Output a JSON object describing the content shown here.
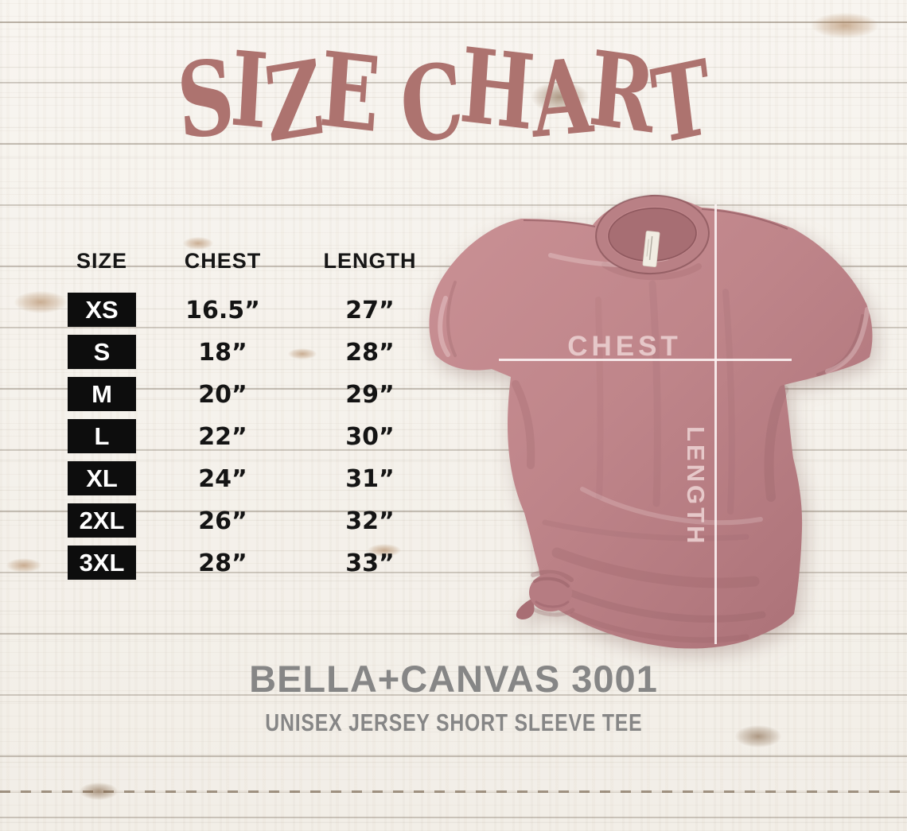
{
  "title": "SIZE CHART",
  "colors": {
    "title": "#ad736f",
    "shirt": "#c0868b",
    "measure": "#e6c8c9",
    "gray": "#868686",
    "badge": "#0d0d0d",
    "ink": "#161616"
  },
  "table": {
    "headers": {
      "size": "SIZE",
      "chest": "CHEST",
      "length": "LENGTH"
    },
    "rows": [
      {
        "size": "XS",
        "chest": "16.5”",
        "length": "27”"
      },
      {
        "size": "S",
        "chest": "18”",
        "length": "28”"
      },
      {
        "size": "M",
        "chest": "20”",
        "length": "29”"
      },
      {
        "size": "L",
        "chest": "22”",
        "length": "30”"
      },
      {
        "size": "XL",
        "chest": "24”",
        "length": "31”"
      },
      {
        "size": "2XL",
        "chest": "26”",
        "length": "32”"
      },
      {
        "size": "3XL",
        "chest": "28”",
        "length": "33”"
      }
    ]
  },
  "shirt": {
    "chest_label": "CHEST",
    "length_label": "LENGTH",
    "color_name_hex": "#c0868b"
  },
  "footer": {
    "brand": "BELLA+CANVAS 3001",
    "subtitle": "UNISEX JERSEY SHORT SLEEVE TEE"
  },
  "chart_data": {
    "type": "table",
    "title": "SIZE CHART",
    "columns": [
      "SIZE",
      "CHEST",
      "LENGTH"
    ],
    "units": "inches",
    "rows": [
      {
        "size": "XS",
        "chest_in": 16.5,
        "length_in": 27
      },
      {
        "size": "S",
        "chest_in": 18,
        "length_in": 28
      },
      {
        "size": "M",
        "chest_in": 20,
        "length_in": 29
      },
      {
        "size": "L",
        "chest_in": 22,
        "length_in": 30
      },
      {
        "size": "XL",
        "chest_in": 24,
        "length_in": 31
      },
      {
        "size": "2XL",
        "chest_in": 26,
        "length_in": 32
      },
      {
        "size": "3XL",
        "chest_in": 28,
        "length_in": 33
      }
    ]
  }
}
